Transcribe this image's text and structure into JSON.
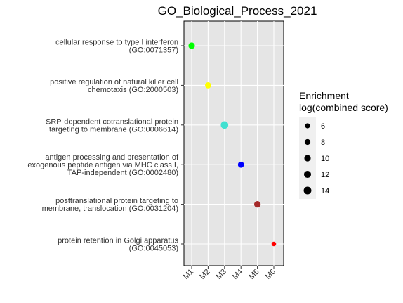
{
  "chart_data": {
    "type": "scatter",
    "title": "GO_Biological_Process_2021",
    "xlabel": "",
    "ylabel": "",
    "categories": [
      "M1",
      "M2",
      "M3",
      "M4",
      "M5",
      "M6"
    ],
    "terms": [
      [
        "cellular response to type I interferon",
        "(GO:0071357)"
      ],
      [
        "positive regulation of natural killer cell",
        "chemotaxis (GO:2000503)"
      ],
      [
        "SRP-dependent cotranslational protein",
        "targeting to membrane (GO:0006614)"
      ],
      [
        "antigen processing and presentation of",
        "exogenous peptide antigen via MHC class I,",
        "TAP-independent (GO:0002480)"
      ],
      [
        "posttranslational protein targeting to",
        "membrane, translocation (GO:0031204)"
      ],
      [
        "protein retention in Golgi apparatus",
        "(GO:0045053)"
      ]
    ],
    "points": [
      {
        "x": "M1",
        "term_index": 0,
        "score": 10,
        "color": "#00ff00"
      },
      {
        "x": "M2",
        "term_index": 1,
        "score": 9,
        "color": "#ffff00"
      },
      {
        "x": "M3",
        "term_index": 2,
        "score": 13.5,
        "color": "#40e0d0"
      },
      {
        "x": "M4",
        "term_index": 3,
        "score": 9,
        "color": "#0000ff"
      },
      {
        "x": "M5",
        "term_index": 4,
        "score": 10,
        "color": "#a52a2a"
      },
      {
        "x": "M6",
        "term_index": 5,
        "score": 5,
        "color": "#ff0000"
      }
    ],
    "legend": {
      "title": [
        "Enrichment",
        "log(combined score)"
      ],
      "values": [
        6,
        8,
        10,
        12,
        14
      ],
      "position": "right"
    },
    "grid": true
  }
}
